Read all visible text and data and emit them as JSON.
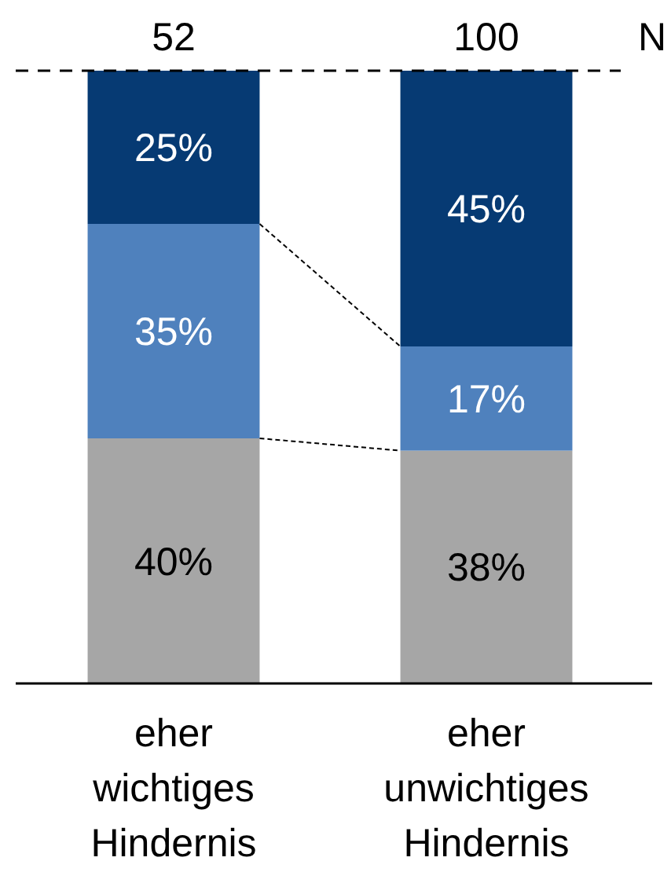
{
  "chart_data": {
    "type": "bar",
    "stacked": true,
    "categories": [
      "eher wichtiges Hindernis",
      "eher unwichtiges Hindernis"
    ],
    "series": [
      {
        "color": "#a6a6a6",
        "values": [
          40,
          38
        ],
        "value_labels": [
          "40%",
          "38%"
        ]
      },
      {
        "color": "#4f81bd",
        "values": [
          35,
          17
        ],
        "value_labels": [
          "35%",
          "17%"
        ]
      },
      {
        "color": "#063a73",
        "values": [
          25,
          45
        ],
        "value_labels": [
          "25%",
          "45%"
        ]
      }
    ],
    "ylim": [
      0,
      100
    ],
    "ref_lines": [
      {
        "axis": "y",
        "value": 100,
        "line_style": "dashed",
        "color": "#000000"
      }
    ],
    "annotations": [
      "52",
      "100",
      "N"
    ]
  }
}
